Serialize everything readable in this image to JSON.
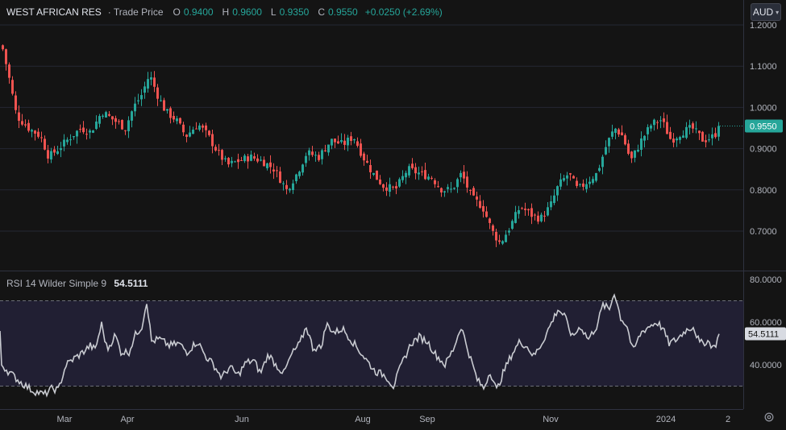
{
  "header": {
    "symbol": "WEST AFRICAN RES",
    "source": "· Trade Price",
    "open_label": "O",
    "open": "0.9400",
    "high_label": "H",
    "high": "0.9600",
    "low_label": "L",
    "low": "0.9350",
    "close_label": "C",
    "close": "0.9550",
    "change": "+0.0250 (+2.69%)",
    "currency": "AUD"
  },
  "rsi_panel": {
    "label": "RSI 14 Wilder Simple 9",
    "value": "54.5111"
  },
  "colors": {
    "up": "#26a69a",
    "down": "#ef5350",
    "rsi_line": "#c9cbd1",
    "rsi_band": "#211f33",
    "background": "#141414",
    "price_badge": "#26a69a"
  },
  "icons": {
    "settings": "gear-icon",
    "currency_dropdown": "chevron-down-icon"
  },
  "chart_data": [
    {
      "type": "candlestick",
      "title": "WEST AFRICAN RES · Trade Price",
      "x_labels": [
        "Mar",
        "Apr",
        "Jun",
        "Aug",
        "Sep",
        "Nov",
        "2024",
        "2"
      ],
      "y_ticks": [
        "0.7000",
        "0.8000",
        "0.9000",
        "1.0000",
        "1.1000",
        "1.2000"
      ],
      "ylim": [
        0.6,
        1.2
      ],
      "last_price": "0.9550",
      "grid": true,
      "series": [
        {
          "name": "Close",
          "anchors": [
            [
              2,
              1.15
            ],
            [
              10,
              1.08
            ],
            [
              20,
              0.98
            ],
            [
              35,
              0.95
            ],
            [
              50,
              0.93
            ],
            [
              60,
              0.88
            ],
            [
              72,
              0.9
            ],
            [
              88,
              0.93
            ],
            [
              100,
              0.95
            ],
            [
              112,
              0.94
            ],
            [
              126,
              0.99
            ],
            [
              140,
              0.97
            ],
            [
              155,
              0.95
            ],
            [
              165,
              1.0
            ],
            [
              175,
              1.03
            ],
            [
              185,
              1.08
            ],
            [
              195,
              1.03
            ],
            [
              205,
              0.99
            ],
            [
              218,
              0.97
            ],
            [
              230,
              0.93
            ],
            [
              245,
              0.96
            ],
            [
              258,
              0.93
            ],
            [
              270,
              0.89
            ],
            [
              282,
              0.86
            ],
            [
              295,
              0.87
            ],
            [
              310,
              0.88
            ],
            [
              325,
              0.87
            ],
            [
              340,
              0.85
            ],
            [
              355,
              0.8
            ],
            [
              368,
              0.84
            ],
            [
              380,
              0.89
            ],
            [
              395,
              0.88
            ],
            [
              410,
              0.92
            ],
            [
              425,
              0.91
            ],
            [
              438,
              0.93
            ],
            [
              450,
              0.88
            ],
            [
              462,
              0.84
            ],
            [
              475,
              0.81
            ],
            [
              490,
              0.8
            ],
            [
              505,
              0.85
            ],
            [
              520,
              0.84
            ],
            [
              535,
              0.83
            ],
            [
              548,
              0.8
            ],
            [
              560,
              0.8
            ],
            [
              572,
              0.84
            ],
            [
              585,
              0.78
            ],
            [
              598,
              0.76
            ],
            [
              610,
              0.7
            ],
            [
              620,
              0.67
            ],
            [
              632,
              0.71
            ],
            [
              645,
              0.76
            ],
            [
              658,
              0.74
            ],
            [
              670,
              0.73
            ],
            [
              682,
              0.76
            ],
            [
              692,
              0.81
            ],
            [
              705,
              0.84
            ],
            [
              716,
              0.8
            ],
            [
              728,
              0.82
            ],
            [
              740,
              0.84
            ],
            [
              752,
              0.91
            ],
            [
              762,
              0.95
            ],
            [
              772,
              0.93
            ],
            [
              782,
              0.87
            ],
            [
              795,
              0.92
            ],
            [
              808,
              0.96
            ],
            [
              820,
              0.97
            ],
            [
              832,
              0.92
            ],
            [
              845,
              0.94
            ],
            [
              858,
              0.95
            ],
            [
              872,
              0.92
            ],
            [
              885,
              0.93
            ],
            [
              893,
              0.955
            ]
          ]
        }
      ]
    },
    {
      "type": "line",
      "title": "RSI 14 Wilder Simple 9",
      "y_ticks": [
        "40.0000",
        "60.0000",
        "80.0000"
      ],
      "ylim": [
        20,
        80
      ],
      "bands": [
        30,
        70
      ],
      "last_value": "54.5111",
      "series": [
        {
          "name": "RSI",
          "anchors": [
            [
              2,
              40
            ],
            [
              10,
              37
            ],
            [
              25,
              32
            ],
            [
              40,
              28
            ],
            [
              55,
              26
            ],
            [
              65,
              29
            ],
            [
              72,
              28
            ],
            [
              82,
              40
            ],
            [
              92,
              43
            ],
            [
              100,
              45
            ],
            [
              112,
              49
            ],
            [
              118,
              47
            ],
            [
              126,
              59
            ],
            [
              133,
              47
            ],
            [
              143,
              54
            ],
            [
              150,
              46
            ],
            [
              160,
              46
            ],
            [
              168,
              54
            ],
            [
              176,
              58
            ],
            [
              182,
              70
            ],
            [
              188,
              51
            ],
            [
              198,
              52
            ],
            [
              210,
              49
            ],
            [
              222,
              50
            ],
            [
              232,
              46
            ],
            [
              245,
              51
            ],
            [
              255,
              44
            ],
            [
              265,
              40
            ],
            [
              275,
              34
            ],
            [
              285,
              39
            ],
            [
              295,
              35
            ],
            [
              305,
              41
            ],
            [
              315,
              42
            ],
            [
              323,
              36
            ],
            [
              333,
              45
            ],
            [
              342,
              40
            ],
            [
              352,
              36
            ],
            [
              362,
              45
            ],
            [
              372,
              50
            ],
            [
              380,
              58
            ],
            [
              388,
              48
            ],
            [
              398,
              48
            ],
            [
              405,
              59
            ],
            [
              415,
              55
            ],
            [
              425,
              57
            ],
            [
              435,
              52
            ],
            [
              445,
              47
            ],
            [
              455,
              42
            ],
            [
              465,
              37
            ],
            [
              478,
              35
            ],
            [
              488,
              30
            ],
            [
              498,
              40
            ],
            [
              510,
              50
            ],
            [
              520,
              53
            ],
            [
              530,
              51
            ],
            [
              540,
              45
            ],
            [
              552,
              40
            ],
            [
              562,
              47
            ],
            [
              572,
              58
            ],
            [
              582,
              45
            ],
            [
              592,
              33
            ],
            [
              600,
              29
            ],
            [
              608,
              37
            ],
            [
              616,
              28
            ],
            [
              625,
              37
            ],
            [
              635,
              45
            ],
            [
              645,
              51
            ],
            [
              655,
              48
            ],
            [
              662,
              44
            ],
            [
              672,
              50
            ],
            [
              682,
              58
            ],
            [
              692,
              66
            ],
            [
              700,
              63
            ],
            [
              710,
              53
            ],
            [
              720,
              58
            ],
            [
              730,
              52
            ],
            [
              740,
              58
            ],
            [
              748,
              68
            ],
            [
              756,
              66
            ],
            [
              762,
              74
            ],
            [
              770,
              62
            ],
            [
              778,
              58
            ],
            [
              785,
              46
            ],
            [
              795,
              55
            ],
            [
              805,
              58
            ],
            [
              815,
              60
            ],
            [
              822,
              57
            ],
            [
              830,
              50
            ],
            [
              840,
              52
            ],
            [
              850,
              56
            ],
            [
              860,
              58
            ],
            [
              868,
              50
            ],
            [
              878,
              51
            ],
            [
              886,
              48
            ],
            [
              893,
              54.5
            ]
          ]
        }
      ]
    }
  ]
}
